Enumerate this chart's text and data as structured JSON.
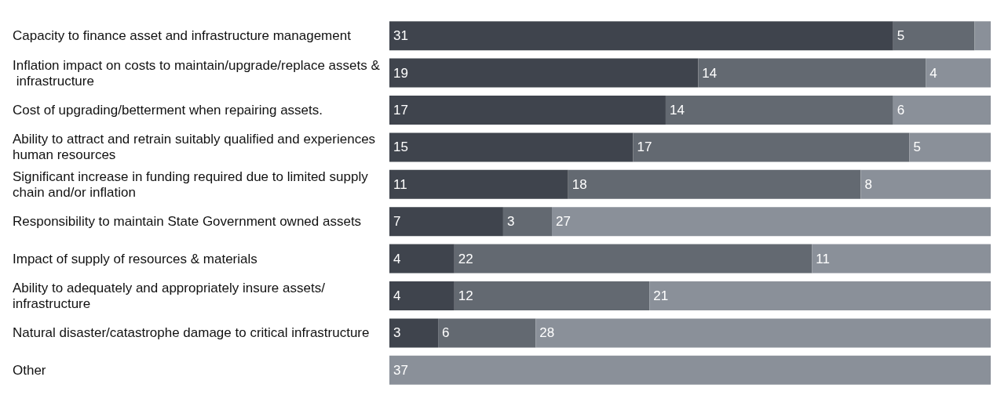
{
  "chart_data": {
    "type": "bar",
    "orientation": "horizontal",
    "stacked": true,
    "categories": [
      "Capacity to finance asset and infrastructure management",
      "Inflation impact on costs to maintain/upgrade/replace assets & infrastructure",
      "Cost of upgrading/betterment when repairing assets.",
      "Ability to attract and retrain suitably qualified and experiences human resources",
      "Significant increase in funding required due to limited supply chain and/or inflation",
      "Responsibility to maintain State Government owned assets",
      "Impact of supply of resources & materials",
      "Ability to adequately and appropriately insure assets/infrastructure",
      "Natural disaster/catastrophe damage to critical infrastructure",
      "Other"
    ],
    "series": [
      {
        "color": "#3f444d",
        "values": [
          31,
          19,
          17,
          15,
          11,
          7,
          4,
          4,
          3,
          0
        ],
        "value_labels": [
          "31",
          "19",
          "17",
          "15",
          "11",
          "7",
          "4",
          "4",
          "3",
          null
        ]
      },
      {
        "color": "#636971",
        "values": [
          5,
          14,
          14,
          17,
          18,
          3,
          22,
          12,
          6,
          0
        ],
        "value_labels": [
          "5",
          "14",
          "14",
          "17",
          "18",
          "3",
          "22",
          "12",
          "6",
          null
        ]
      },
      {
        "color": "#8a9099",
        "values": [
          1,
          4,
          6,
          5,
          8,
          27,
          11,
          21,
          28,
          37
        ],
        "value_labels": [
          null,
          "4",
          "6",
          "5",
          "8",
          "27",
          "11",
          "21",
          "28",
          "37"
        ]
      }
    ]
  }
}
